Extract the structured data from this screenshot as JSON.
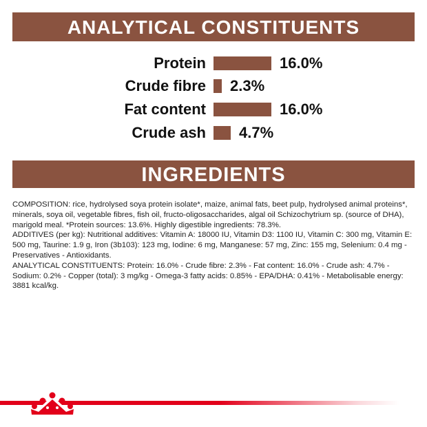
{
  "analytical": {
    "title": "ANALYTICAL CONSTITUENTS",
    "rows": [
      {
        "label": "Protein",
        "value": "16.0%",
        "percent": 16.0
      },
      {
        "label": "Crude fibre",
        "value": "2.3%",
        "percent": 2.3
      },
      {
        "label": "Fat content",
        "value": "16.0%",
        "percent": 16.0
      },
      {
        "label": "Crude ash",
        "value": "4.7%",
        "percent": 4.7
      }
    ],
    "bar_color": "#8a5340"
  },
  "ingredients": {
    "title": "INGREDIENTS",
    "paragraphs": [
      "COMPOSITION: rice, hydrolysed soya protein isolate*, maize, animal fats, beet pulp, hydrolysed animal proteins*, minerals, soya oil, vegetable fibres, fish oil, fructo-oligosaccharides, algal oil Schizochytrium sp. (source of DHA), marigold meal. *Protein sources: 13.6%. Highly digestible ingredients: 78.3%.",
      "ADDITIVES (per kg): Nutritional additives: Vitamin A: 18000 IU, Vitamin D3: 1100 IU, Vitamin C: 300 mg, Vitamin E: 500 mg, Taurine: 1.9 g, Iron (3b103): 123 mg, Iodine: 6 mg, Manganese: 57 mg, Zinc: 155 mg, Selenium: 0.4 mg - Preservatives - Antioxidants.",
      "ANALYTICAL CONSTITUENTS: Protein: 16.0% - Crude fibre: 2.3% - Fat content: 16.0% - Crude ash: 4.7% - Sodium: 0.2% - Copper (total): 3 mg/kg - Omega-3 fatty acids: 0.85% - EPA/DHA: 0.41% - Metabolisable energy: 3881 kcal/kg."
    ]
  },
  "brand": {
    "logo_icon": "crown-icon",
    "accent_color": "#e2001a"
  }
}
